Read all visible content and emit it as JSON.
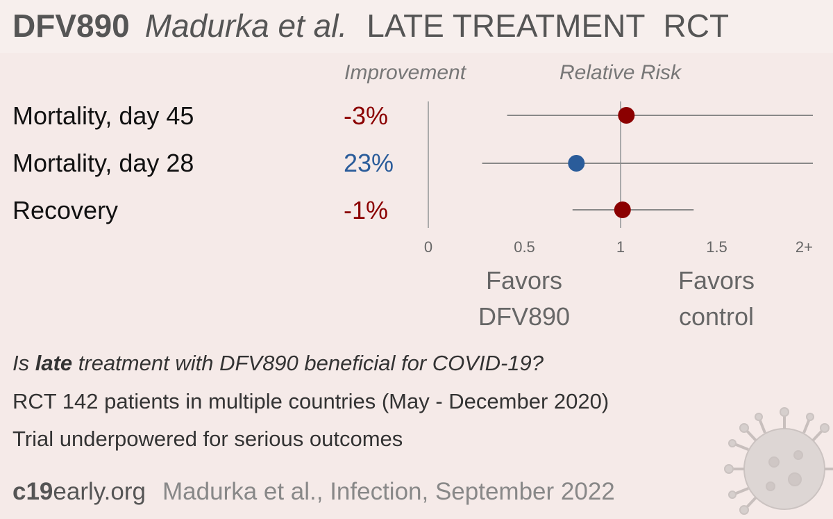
{
  "header": {
    "drug": "DFV890",
    "authors": "Madurka et al.",
    "setting": "LATE TREATMENT",
    "design": "RCT"
  },
  "columns": {
    "improvement": "Improvement",
    "relative_risk": "Relative Risk"
  },
  "chart_data": {
    "type": "forest",
    "x_axis": {
      "range": [
        0,
        2
      ],
      "ticks": [
        {
          "value": 0,
          "label": "0"
        },
        {
          "value": 0.5,
          "label": "0.5"
        },
        {
          "value": 1,
          "label": "1"
        },
        {
          "value": 1.5,
          "label": "1.5"
        },
        {
          "value": 2,
          "label": "2+"
        }
      ],
      "reference_line": 1
    },
    "rows": [
      {
        "outcome": "Mortality, day 45",
        "improvement": "-3%",
        "rr": 1.03,
        "ci_low": 0.41,
        "ci_high": 2.0,
        "color": "#8b0000"
      },
      {
        "outcome": "Mortality, day 28",
        "improvement": "23%",
        "rr": 0.77,
        "ci_low": 0.28,
        "ci_high": 2.0,
        "color": "#2a5c9a"
      },
      {
        "outcome": "Recovery",
        "improvement": "-1%",
        "rr": 1.01,
        "ci_low": 0.75,
        "ci_high": 1.38,
        "color": "#8b0000"
      }
    ],
    "favors_left": [
      "Favors",
      "DFV890"
    ],
    "favors_right": [
      "Favors",
      "control"
    ]
  },
  "summary": {
    "question_pre": "Is ",
    "question_bold": "late",
    "question_post": " treatment with DFV890 beneficial for COVID-19?",
    "line1": "RCT 142 patients in multiple countries (May - December 2020)",
    "line2": "Trial underpowered for serious outcomes"
  },
  "footer": {
    "site_bold": "c19",
    "site_rest": "early.org",
    "citation": "Madurka et al., Infection, September 2022"
  }
}
